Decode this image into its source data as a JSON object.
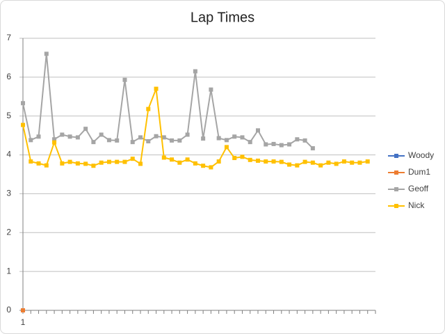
{
  "chart_data": {
    "type": "line",
    "title": "Lap Times",
    "categories": [
      "1",
      null,
      null,
      null,
      null,
      null,
      null,
      null,
      null,
      null,
      null,
      null,
      null,
      null,
      null,
      null,
      null,
      null,
      null,
      null,
      null,
      null,
      null,
      null,
      null,
      null,
      null,
      null,
      null,
      null,
      null,
      null,
      null,
      null,
      null,
      null,
      null,
      null,
      null,
      null,
      null,
      null,
      null,
      null,
      null,
      null
    ],
    "series": [
      {
        "name": "Woody",
        "color": "#4472c4",
        "values": [
          null,
          null,
          null,
          null,
          null,
          null,
          null,
          null,
          null,
          null,
          null,
          null,
          null,
          null,
          null,
          null,
          null,
          null,
          null,
          null,
          null,
          null,
          null,
          null,
          null,
          null,
          null,
          null,
          null,
          null,
          null,
          null,
          null,
          null,
          null,
          null,
          null,
          null,
          null,
          null,
          null,
          null,
          null,
          null,
          null,
          null
        ]
      },
      {
        "name": "Dum1",
        "color": "#ed7d31",
        "values": [
          0,
          null,
          null,
          null,
          null,
          null,
          null,
          null,
          null,
          null,
          null,
          null,
          null,
          null,
          null,
          null,
          null,
          null,
          null,
          null,
          null,
          null,
          null,
          null,
          null,
          null,
          null,
          null,
          null,
          null,
          null,
          null,
          null,
          null,
          null,
          null,
          null,
          null,
          null,
          null,
          null,
          null,
          null,
          null,
          null,
          null
        ]
      },
      {
        "name": "Geoff",
        "color": "#a5a5a5",
        "values": [
          5.33,
          4.38,
          4.47,
          6.6,
          4.4,
          4.52,
          4.47,
          4.45,
          4.67,
          4.33,
          4.52,
          4.38,
          4.37,
          5.93,
          4.33,
          4.45,
          4.35,
          4.48,
          4.45,
          4.37,
          4.37,
          4.52,
          6.15,
          4.42,
          5.68,
          4.43,
          4.38,
          4.47,
          4.45,
          4.33,
          4.63,
          4.27,
          4.28,
          4.25,
          4.27,
          4.4,
          4.37,
          4.17,
          null,
          null,
          null,
          null,
          null,
          null,
          null,
          null
        ]
      },
      {
        "name": "Nick",
        "color": "#ffc000",
        "values": [
          4.77,
          3.83,
          3.78,
          3.73,
          4.32,
          3.78,
          3.82,
          3.78,
          3.77,
          3.72,
          3.8,
          3.82,
          3.82,
          3.82,
          3.9,
          3.77,
          5.18,
          5.7,
          3.93,
          3.88,
          3.8,
          3.88,
          3.78,
          3.72,
          3.68,
          3.83,
          4.2,
          3.92,
          3.95,
          3.87,
          3.85,
          3.83,
          3.83,
          3.82,
          3.75,
          3.73,
          3.82,
          3.8,
          3.73,
          3.8,
          3.77,
          3.83,
          3.8,
          3.8,
          3.83,
          null
        ]
      }
    ],
    "ylim": [
      0,
      7
    ],
    "yticks": [
      0,
      1,
      2,
      3,
      4,
      5,
      6,
      7
    ],
    "grid": true,
    "legend": "right"
  }
}
